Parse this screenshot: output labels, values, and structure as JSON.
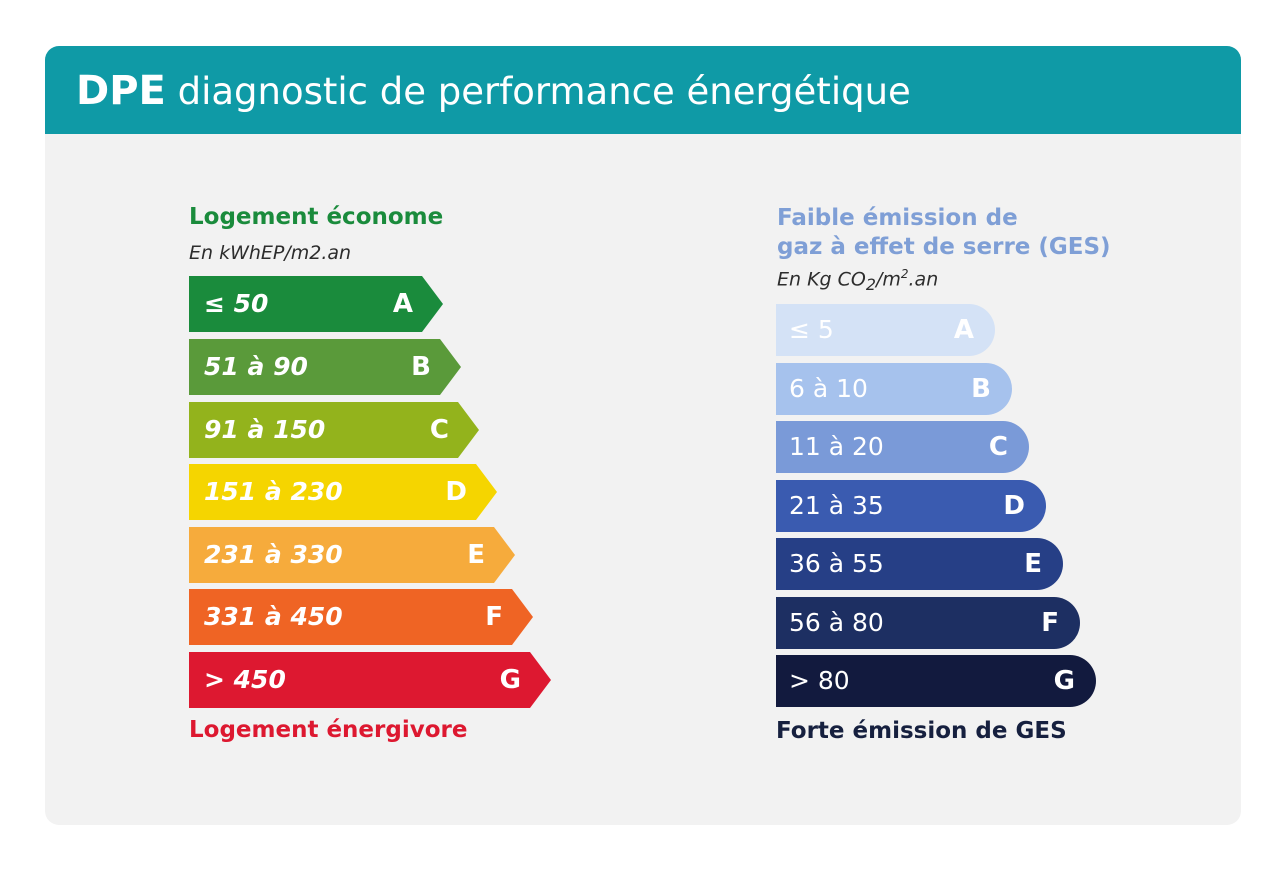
{
  "header": {
    "abbr": "DPE",
    "title": "diagnostic de performance énergétique"
  },
  "colors": {
    "header": "#0f9aa6",
    "card": "#f2f2f2",
    "left_top": "#1a8b3c",
    "left_bottom": "#dd1830",
    "right_top": "#7f9fd6",
    "right_bottom": "#16203f"
  },
  "energy": {
    "top_label": "Logement économe",
    "unit": "En kWhEP/m2.an",
    "bottom_label": "Logement énergivore",
    "classes": [
      {
        "range": "≤ 50",
        "letter": "A",
        "color": "#1a8b3c"
      },
      {
        "range": "51 à 90",
        "letter": "B",
        "color": "#5a9a3a"
      },
      {
        "range": "91 à 150",
        "letter": "C",
        "color": "#93b31c"
      },
      {
        "range": "151 à 230",
        "letter": "D",
        "color": "#f5d500"
      },
      {
        "range": "231 à 330",
        "letter": "E",
        "color": "#f6ab3c"
      },
      {
        "range": "331 à 450",
        "letter": "F",
        "color": "#ef6424"
      },
      {
        "range": "> 450",
        "letter": "G",
        "color": "#dd1830"
      }
    ]
  },
  "ges": {
    "top_label_line1": "Faible émission de",
    "top_label_line2": "gaz à effet de serre (GES)",
    "unit_prefix": "En Kg CO",
    "unit_sub": "2",
    "unit_mid": "/m",
    "unit_sup": "2",
    "unit_suffix": ".an",
    "bottom_label": "Forte émission de GES",
    "classes": [
      {
        "range": "≤ 5",
        "letter": "A",
        "color": "#d4e2f6"
      },
      {
        "range": "6 à 10",
        "letter": "B",
        "color": "#a6c2ed"
      },
      {
        "range": "11 à 20",
        "letter": "C",
        "color": "#7a9ad8"
      },
      {
        "range": "21 à 35",
        "letter": "D",
        "color": "#3a5bb0"
      },
      {
        "range": "36 à 55",
        "letter": "E",
        "color": "#263f86"
      },
      {
        "range": "56 à 80",
        "letter": "F",
        "color": "#1d2f62"
      },
      {
        "range": "> 80",
        "letter": "G",
        "color": "#121a3e"
      }
    ]
  }
}
